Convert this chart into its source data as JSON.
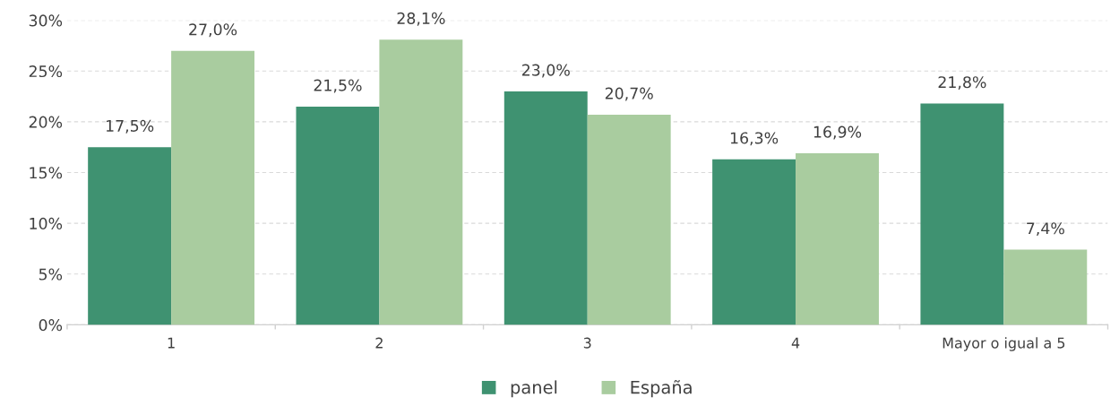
{
  "chart_data": {
    "type": "bar",
    "categories": [
      "1",
      "2",
      "3",
      "4",
      "Mayor o igual a 5"
    ],
    "series": [
      {
        "name": "panel",
        "color": "#3f9271",
        "values": [
          17.5,
          21.5,
          23.0,
          16.3,
          21.8
        ],
        "value_labels": [
          "17,5%",
          "21,5%",
          "23,0%",
          "16,3%",
          "21,8%"
        ]
      },
      {
        "name": "España",
        "color": "#a9cc9f",
        "values": [
          27.0,
          28.1,
          20.7,
          16.9,
          7.4
        ],
        "value_labels": [
          "27,0%",
          "28,1%",
          "20,7%",
          "16,9%",
          "7,4%"
        ]
      }
    ],
    "ylim": [
      0,
      30
    ],
    "yticks": [
      {
        "value": 0,
        "label": "0%"
      },
      {
        "value": 5,
        "label": "5%"
      },
      {
        "value": 10,
        "label": "10%"
      },
      {
        "value": 15,
        "label": "15%"
      },
      {
        "value": 20,
        "label": "20%"
      },
      {
        "value": 25,
        "label": "25%"
      },
      {
        "value": 30,
        "label": "30%"
      }
    ],
    "grid": "y",
    "legend": "bottom"
  }
}
